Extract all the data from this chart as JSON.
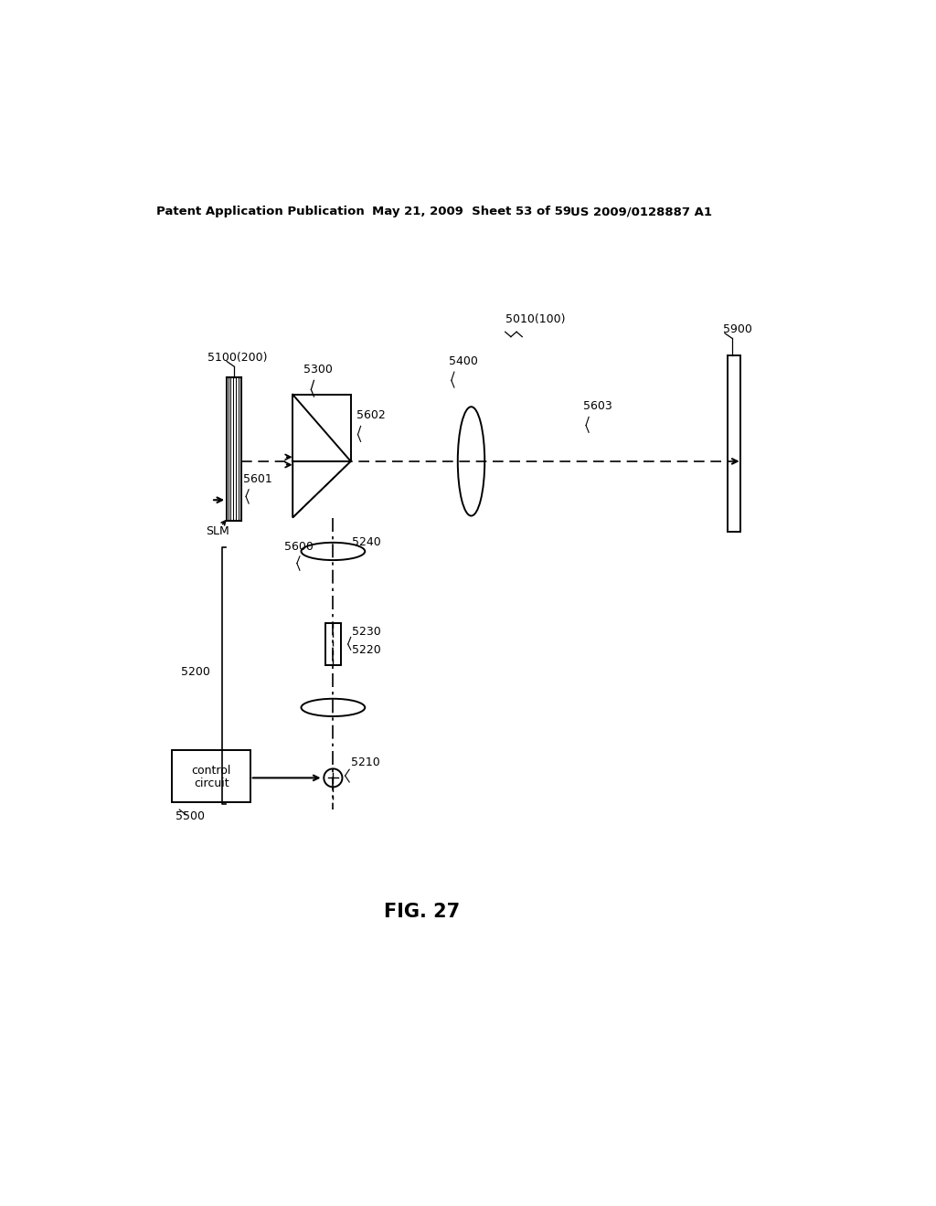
{
  "header_left": "Patent Application Publication",
  "header_mid": "May 21, 2009  Sheet 53 of 59",
  "header_right": "US 2009/0128887 A1",
  "fig_label": "FIG. 27",
  "bg_color": "#ffffff",
  "line_color": "#000000",
  "labels": {
    "5100_200": "5100(200)",
    "5300": "5300",
    "5400": "5400",
    "5010_100": "5010(100)",
    "5900": "5900",
    "5602": "5602",
    "5603": "5603",
    "5601": "5601",
    "SLM": "SLM",
    "5600": "5600",
    "5240": "5240",
    "5200": "5200",
    "5230": "5230",
    "5220": "5220",
    "5210": "5210",
    "5500": "5500"
  }
}
